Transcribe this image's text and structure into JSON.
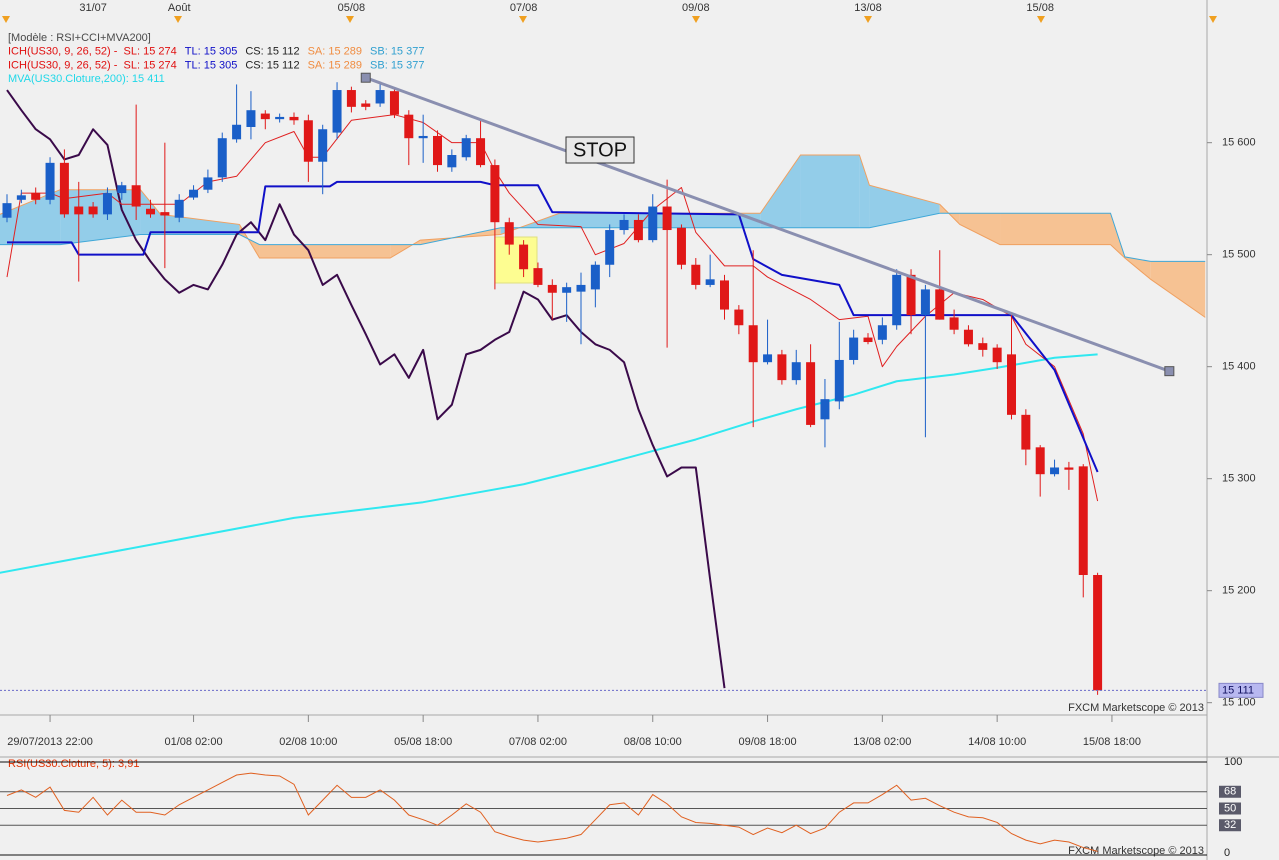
{
  "chart_data": [
    {
      "type": "candlestick",
      "legend_rows": [
        [
          {
            "text": "[Modèle : RSI+CCI+MVA200]",
            "color": "#4a4a4a"
          }
        ],
        [
          {
            "text": "ICH(US30, 9, 26, 52) -  SL: 15 274",
            "color": "#e01010"
          },
          {
            "text": "TL: 15 305",
            "color": "#1010c8"
          },
          {
            "text": "CS: 15 112",
            "color": "#222222"
          },
          {
            "text": "SA: 15 289",
            "color": "#f08c40"
          },
          {
            "text": "SB: 15 377",
            "color": "#30a0d0"
          }
        ],
        [
          {
            "text": "ICH(US30, 9, 26, 52) -  SL: 15 274",
            "color": "#e01010"
          },
          {
            "text": "TL: 15 305",
            "color": "#1010c8"
          },
          {
            "text": "CS: 15 112",
            "color": "#222222"
          },
          {
            "text": "SA: 15 289",
            "color": "#f08c40"
          },
          {
            "text": "SB: 15 377",
            "color": "#30a0d0"
          }
        ],
        [
          {
            "text": "MVA(US30.Cloture,200): 15 411",
            "color": "#20d8e8"
          }
        ]
      ],
      "date_markers": {
        "x": [
          6,
          12,
          24,
          36,
          48,
          60,
          72
        ],
        "labels": [
          "31/07",
          "Août",
          "05/08",
          "07/08",
          "09/08",
          "13/08",
          "15/08"
        ]
      },
      "categories": [
        null,
        null,
        null,
        "29/07/2013 22:00",
        null,
        null,
        null,
        null,
        null,
        null,
        null,
        null,
        null,
        "01/08 02:00",
        null,
        null,
        null,
        null,
        null,
        null,
        null,
        "02/08 10:00",
        null,
        null,
        null,
        null,
        null,
        null,
        null,
        "05/08 18:00",
        null,
        null,
        null,
        null,
        null,
        null,
        null,
        "07/08 02:00",
        null,
        null,
        null,
        null,
        null,
        null,
        null,
        "08/08 10:00",
        null,
        null,
        null,
        null,
        null,
        null,
        null,
        "09/08 18:00",
        null,
        null,
        null,
        null,
        null,
        null,
        null,
        "13/08 02:00",
        null,
        null,
        null,
        null,
        null,
        null,
        null,
        "14/08 10:00",
        null,
        null,
        null,
        null,
        null,
        null,
        null,
        "15/08 18:00"
      ],
      "open": [
        15533,
        15549,
        15555,
        15549,
        15582,
        15543,
        15543,
        15536,
        15555,
        15562,
        15541,
        15538,
        15533,
        15551,
        15558,
        15569,
        15603,
        15614,
        15626,
        15621,
        15623,
        15620,
        15583,
        15609,
        15647,
        15635,
        15635,
        15646,
        15625,
        15604,
        15606,
        15578,
        15587,
        15604,
        15580,
        15529,
        15509,
        15488,
        15473,
        15466,
        15467,
        15469,
        15491,
        15522,
        15531,
        15513,
        15543,
        15524,
        15491,
        15473,
        15477,
        15451,
        15437,
        15404,
        15411,
        15388,
        15404,
        15353,
        15369,
        15406,
        15426,
        15424,
        15437,
        15482,
        15446,
        15469,
        15444,
        15433,
        15421,
        15417,
        15411,
        15357,
        15328,
        15304,
        15310,
        15311,
        15214,
        null
      ],
      "high": [
        15554,
        15558,
        15560,
        15587,
        15594,
        15565,
        15547,
        15560,
        15565,
        15634,
        15549,
        15600,
        15554,
        15562,
        15576,
        15609,
        15652,
        15646,
        15629,
        15626,
        15627,
        15625,
        15616,
        15654,
        15650,
        15638,
        15652,
        15649,
        15629,
        15625,
        15611,
        15594,
        15607,
        15620,
        15585,
        15533,
        15513,
        15493,
        15478,
        15475,
        15484,
        15494,
        15527,
        15536,
        15536,
        15554,
        15567,
        15527,
        15497,
        15500,
        15482,
        15455,
        15504,
        15442,
        15415,
        15415,
        15420,
        15389,
        15440,
        15433,
        15430,
        15444,
        15487,
        15487,
        15473,
        15504,
        15451,
        15437,
        15426,
        15420,
        15446,
        15362,
        15330,
        15317,
        15315,
        15313,
        15216,
        null
      ],
      "low": [
        15529,
        15546,
        15545,
        15545,
        15533,
        15476,
        15533,
        15531,
        15549,
        15531,
        15533,
        15488,
        15529,
        15549,
        15555,
        15565,
        15600,
        15603,
        15612,
        15618,
        15616,
        15565,
        15554,
        15603,
        15627,
        15629,
        15632,
        15622,
        15580,
        15582,
        15574,
        15574,
        15584,
        15578,
        15469,
        15500,
        15480,
        15471,
        15442,
        15440,
        15420,
        15453,
        15480,
        15518,
        15511,
        15511,
        15417,
        15487,
        15469,
        15471,
        15442,
        15429,
        15346,
        15402,
        15384,
        15384,
        15346,
        15328,
        15362,
        15402,
        15420,
        15420,
        15433,
        15429,
        15337,
        15442,
        15429,
        15418,
        15409,
        15398,
        15353,
        15312,
        15284,
        15302,
        15290,
        15194,
        15107,
        null
      ],
      "close": [
        15546,
        15553,
        15549,
        15582,
        15536,
        15536,
        15536,
        15555,
        15562,
        15543,
        15536,
        15535,
        15549,
        15558,
        15569,
        15604,
        15616,
        15629,
        15621,
        15623,
        15620,
        15583,
        15612,
        15647,
        15632,
        15632,
        15647,
        15625,
        15604,
        15606,
        15580,
        15589,
        15604,
        15580,
        15529,
        15509,
        15487,
        15473,
        15466,
        15471,
        15473,
        15491,
        15522,
        15531,
        15513,
        15543,
        15522,
        15491,
        15473,
        15478,
        15451,
        15437,
        15404,
        15411,
        15388,
        15404,
        15348,
        15371,
        15406,
        15426,
        15422,
        15437,
        15482,
        15446,
        15469,
        15442,
        15433,
        15420,
        15415,
        15404,
        15357,
        15326,
        15304,
        15310,
        15308,
        15214,
        15111,
        null
      ],
      "colors": {
        "up": "#1a5fc8",
        "down": "#e01818",
        "cloud_up": "#93cde9",
        "cloud_down": "#f6c293"
      },
      "cloud": {
        "x": [
          -0.5,
          3.7,
          9.3,
          10.7,
          16.2,
          17.6,
          26.7,
          28.8,
          34.4,
          38.5,
          52.5,
          55.3,
          59.4,
          60.1,
          65,
          66.4,
          69.2,
          76.9,
          77.9,
          79.7,
          83.5
        ],
        "span_a": [
          15536,
          15558,
          15558,
          15536,
          15527,
          15497,
          15497,
          15513,
          15518,
          15537,
          15537,
          15589,
          15589,
          15562,
          15545,
          15527,
          15509,
          15509,
          15497,
          15478,
          15444
        ],
        "span_b": [
          15509,
          15509,
          15518,
          15518,
          15518,
          15509,
          15509,
          15509,
          15524,
          15524,
          15524,
          15524,
          15524,
          15524,
          15537,
          15537,
          15537,
          15537,
          15498,
          15494,
          15494
        ],
        "color_a": "#f0a060",
        "color_b": "#40a8d8"
      },
      "lines": {
        "mva": {
          "color": "#30e8f0",
          "x": [
            -0.5,
            10,
            20,
            29,
            36,
            41,
            48,
            52,
            55,
            59,
            62,
            66,
            69,
            73,
            76
          ],
          "values": [
            15216,
            15241,
            15265,
            15279,
            15295,
            15311,
            15335,
            15351,
            15362,
            15375,
            15387,
            15393,
            15399,
            15408,
            15411
          ]
        },
        "chikou": {
          "color": "#3a0a4a",
          "x": [
            0,
            1,
            2,
            3,
            4,
            5,
            6,
            7,
            8,
            9,
            10,
            11,
            12,
            13,
            14,
            15,
            16,
            17,
            18,
            19,
            20,
            21,
            22,
            23,
            24,
            25,
            26,
            27,
            28,
            29,
            30,
            31,
            32,
            33,
            34,
            35,
            36,
            37,
            38,
            39,
            40,
            41,
            42,
            43,
            44,
            45,
            46,
            47,
            48,
            49,
            50
          ],
          "values": [
            15647,
            15629,
            15612,
            15603,
            15585,
            15589,
            15612,
            15598,
            15540,
            15513,
            15494,
            15478,
            15466,
            15473,
            15469,
            15491,
            15518,
            15529,
            15513,
            15545,
            15518,
            15504,
            15473,
            15482,
            15455,
            15429,
            15402,
            15411,
            15390,
            15415,
            15353,
            15366,
            15411,
            15415,
            15424,
            15431,
            15467,
            15460,
            15442,
            15446,
            15431,
            15420,
            15415,
            15404,
            15362,
            15330,
            15302,
            15310,
            15310,
            15210,
            15113
          ]
        },
        "tenkan": {
          "color": "#e02020",
          "x": [
            0,
            1,
            3,
            4,
            7,
            8,
            12,
            14,
            16,
            18,
            20,
            21,
            22,
            24,
            27,
            29,
            31,
            33,
            34,
            35,
            37,
            40,
            41,
            43,
            45,
            47,
            48,
            50,
            52,
            53,
            56,
            58,
            60,
            61,
            62,
            64,
            66,
            68,
            70,
            71,
            73,
            75,
            76
          ],
          "values": [
            15480,
            15555,
            15555,
            15550,
            15555,
            15545,
            15545,
            15565,
            15570,
            15600,
            15610,
            15587,
            15587,
            15620,
            15625,
            15618,
            15600,
            15600,
            15575,
            15555,
            15527,
            15525,
            15500,
            15510,
            15540,
            15560,
            15520,
            15490,
            15490,
            15480,
            15460,
            15442,
            15445,
            15400,
            15418,
            15445,
            15466,
            15460,
            15445,
            15420,
            15400,
            15340,
            15280
          ]
        },
        "kijun": {
          "color": "#1010c8",
          "x": [
            0,
            4.5,
            5,
            9.5,
            10,
            17.5,
            18,
            22.5,
            23,
            33,
            34,
            37,
            38,
            51,
            52,
            54,
            58,
            59,
            70,
            73,
            76
          ],
          "values": [
            15511,
            15511,
            15500,
            15500,
            15520,
            15520,
            15561,
            15561,
            15565,
            15565,
            15562,
            15562,
            15538,
            15536,
            15496,
            15482,
            15473,
            15446,
            15446,
            15397,
            15306
          ]
        }
      },
      "trendline": {
        "color": "#8a8fb0",
        "x": [
          25,
          81
        ],
        "values": [
          15658,
          15396
        ]
      },
      "annotation": "STOP",
      "last_price": {
        "value": 15111,
        "label": "15 111"
      },
      "ylim": [
        15089,
        15714
      ],
      "yticks": [
        {
          "value": 15100,
          "label": "15 100"
        },
        {
          "value": 15200,
          "label": "15 200"
        },
        {
          "value": 15300,
          "label": "15 300"
        },
        {
          "value": 15400,
          "label": "15 400"
        },
        {
          "value": 15500,
          "label": "15 500"
        },
        {
          "value": 15600,
          "label": "15 600"
        }
      ],
      "credit": "FXCM Marketscope © 2013"
    },
    {
      "type": "line",
      "title": "RSI(US30.Cloture, 5): 3,91",
      "color": "#e06020",
      "values": [
        64,
        70,
        62,
        73,
        48,
        46,
        62,
        43,
        59,
        46,
        46,
        43,
        54,
        62,
        70,
        78,
        86,
        88,
        86,
        85,
        76,
        43,
        59,
        75,
        62,
        62,
        70,
        59,
        43,
        38,
        32,
        43,
        55,
        46,
        25,
        20,
        16,
        14,
        16,
        18,
        22,
        38,
        54,
        56,
        43,
        65,
        55,
        41,
        35,
        34,
        32,
        30,
        22,
        29,
        24,
        32,
        23,
        29,
        46,
        56,
        56,
        65,
        75,
        59,
        61,
        53,
        46,
        41,
        40,
        35,
        23,
        16,
        12,
        16,
        14,
        8,
        3.91
      ],
      "ylim": [
        0,
        100
      ],
      "yticks": [
        0,
        32,
        50,
        68,
        100
      ],
      "credit": "FXCM Marketscope © 2013"
    }
  ]
}
